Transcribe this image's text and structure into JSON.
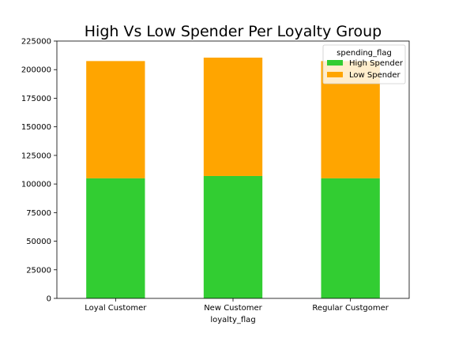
{
  "chart_data": {
    "type": "bar",
    "stacked": true,
    "title": "High Vs Low Spender Per Loyalty Group",
    "xlabel": "loyalty_flag",
    "ylabel": "",
    "categories": [
      "Loyal Customer",
      "New Customer",
      "Regular Custgomer"
    ],
    "series": [
      {
        "name": "High Spender",
        "color": "#32cd32",
        "values": [
          105000,
          107000,
          105000
        ]
      },
      {
        "name": "Low Spender",
        "color": "#ffa500",
        "values": [
          102500,
          103500,
          102500
        ]
      }
    ],
    "ylim": [
      0,
      225000
    ],
    "yticks": [
      0,
      25000,
      50000,
      75000,
      100000,
      125000,
      150000,
      175000,
      200000,
      225000
    ],
    "grid": false,
    "legend": {
      "title": "spending_flag",
      "placement": "top-right"
    }
  }
}
